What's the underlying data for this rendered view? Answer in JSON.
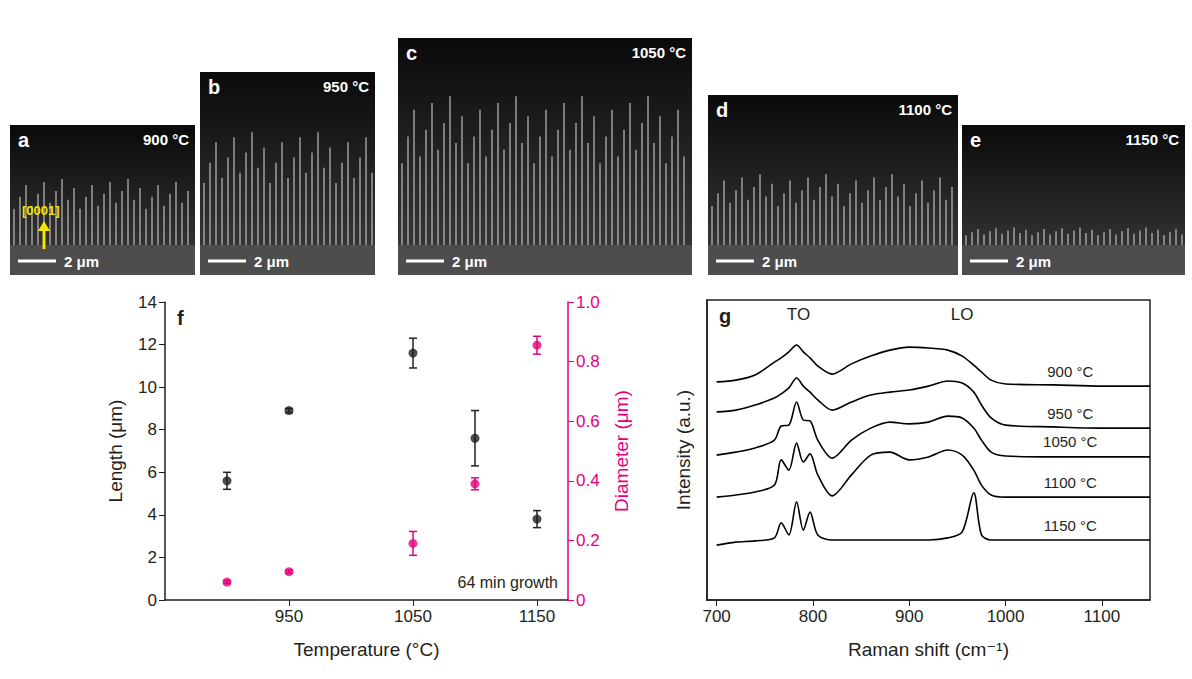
{
  "images": [
    {
      "letter": "a",
      "temperature": "900 °C",
      "scale_bar": "2 μm",
      "annotation": "[0001]"
    },
    {
      "letter": "b",
      "temperature": "950 °C",
      "scale_bar": "2 μm"
    },
    {
      "letter": "c",
      "temperature": "1050 °C",
      "scale_bar": "2 μm"
    },
    {
      "letter": "d",
      "temperature": "1100 °C",
      "scale_bar": "2 μm"
    },
    {
      "letter": "e",
      "temperature": "1150 °C",
      "scale_bar": "2 μm"
    }
  ],
  "chart_data": [
    {
      "type": "scatter",
      "panel_label": "f",
      "xlabel": "Temperature (°C)",
      "ylabel": "Length (μm)",
      "y2label": "Diameter (μm)",
      "annotation": "64 min growth",
      "x": [
        900,
        950,
        1050,
        1100,
        1150
      ],
      "xlim": [
        850,
        1175
      ],
      "xticks": [
        950,
        1050,
        1150
      ],
      "ylim": [
        0,
        14
      ],
      "yticks": [
        0,
        2,
        4,
        6,
        8,
        10,
        12,
        14
      ],
      "y2lim": [
        0,
        1
      ],
      "y2ticks": [
        0,
        0.2,
        0.4,
        0.6,
        0.8,
        {
          "value": 1,
          "label": "1.0"
        }
      ],
      "grid": false,
      "series": [
        {
          "color": "#231f20",
          "marker": "circle",
          "values": [
            5.6,
            8.9,
            11.6,
            7.6,
            3.8
          ],
          "errors": [
            0.4,
            0.1,
            0.7,
            1.3,
            0.4
          ]
        },
        {
          "color": "#e6007e",
          "marker": "circle",
          "axis": "y2",
          "values": [
            0.06,
            0.095,
            0.19,
            0.39,
            0.855
          ],
          "errors": [
            0.005,
            0.005,
            0.04,
            0.02,
            0.03
          ]
        }
      ]
    },
    {
      "type": "line",
      "panel_label": "g",
      "xlabel": "Raman shift (cm⁻¹)",
      "ylabel": "Intensity (a.u.)",
      "xlim": [
        690,
        1150
      ],
      "xticks": [
        700,
        800,
        900,
        1000,
        1100
      ],
      "ylim": [
        0,
        100
      ],
      "tick_labels": "x",
      "grid": false,
      "line_style": "solid",
      "annotations": [
        {
          "text": "TO",
          "x": 785
        },
        {
          "text": "LO",
          "x": 955
        }
      ],
      "x": [
        700,
        720,
        740,
        760,
        767,
        775,
        783,
        790,
        797,
        805,
        820,
        840,
        860,
        880,
        900,
        920,
        940,
        955,
        967,
        975,
        985,
        1000,
        1050,
        1100,
        1150
      ],
      "series": [
        {
          "name": "900 °C",
          "color": "#000000",
          "values": [
            72.7,
            73.3,
            75,
            79.3,
            80.7,
            82.7,
            85,
            82.7,
            80.7,
            78,
            75.3,
            78.7,
            81.3,
            83.3,
            84.3,
            84,
            83.3,
            81.3,
            78.3,
            76,
            73.3,
            72,
            71.7,
            71.3,
            71.3
          ]
        },
        {
          "name": "950 °C",
          "color": "#000000",
          "values": [
            62.7,
            63.3,
            65,
            67.3,
            68.7,
            70.7,
            74,
            71.3,
            69.3,
            66.7,
            63.3,
            66,
            68.3,
            69.3,
            70,
            71.3,
            73,
            72.3,
            69.3,
            65,
            60.7,
            58.3,
            57.7,
            57.3,
            57.3
          ]
        },
        {
          "name": "1050 °C",
          "color": "#000000",
          "values": [
            48.3,
            49.3,
            50.7,
            53.3,
            58,
            58.3,
            66,
            60,
            59.7,
            53.3,
            47.3,
            53.3,
            57.3,
            59.3,
            58.7,
            59.3,
            61.3,
            60.7,
            57.3,
            53.3,
            49.3,
            48,
            47.7,
            47.7,
            47.7
          ]
        },
        {
          "name": "1100 °C",
          "color": "#000000",
          "values": [
            34.3,
            35,
            36,
            38.3,
            46.7,
            43.3,
            52.3,
            46,
            48.7,
            41.7,
            34.7,
            41.7,
            48.3,
            49.3,
            46.7,
            47.7,
            50,
            48.3,
            43.3,
            38.3,
            35,
            34.3,
            34.3,
            34.3,
            34.3
          ]
        },
        {
          "name": "1150 °C",
          "color": "#000000",
          "values": [
            18.3,
            19.3,
            19.7,
            20.7,
            25.7,
            21.7,
            32.7,
            23.3,
            29.3,
            21.7,
            20,
            20,
            20,
            20,
            20,
            20,
            20.7,
            22.7,
            35.7,
            21.7,
            20,
            20,
            20,
            20,
            20
          ]
        }
      ]
    }
  ]
}
